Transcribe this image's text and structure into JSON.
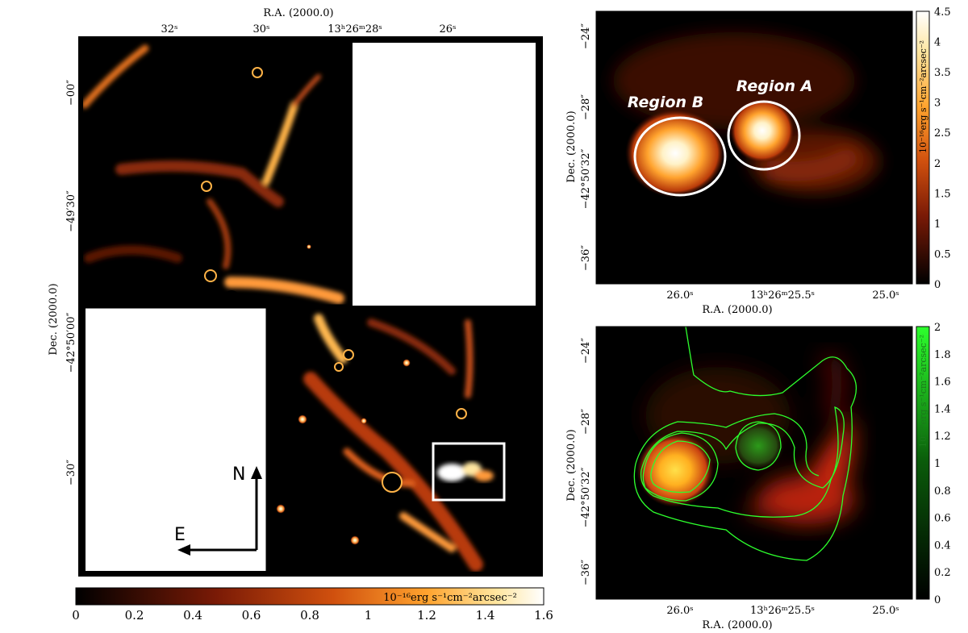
{
  "colors": {
    "heat_low": "#000000",
    "heat_mid": "#b83a0a",
    "heat_high": "#ffd27a",
    "heat_top": "#ffffff",
    "region_outline": "#ffffff",
    "contour": "#2dff2d",
    "green_channel": "#00ff00",
    "red_channel": "#ff2a0a"
  },
  "left_panel": {
    "ra_axis_title": "R.A. (2000.0)",
    "dec_axis_title": "Dec. (2000.0)",
    "ra_ticks": [
      "32ˢ",
      "30ˢ",
      "13ʰ26ᵐ28ˢ",
      "26ˢ"
    ],
    "dec_ticks": [
      "−00″",
      "−49′30″",
      "−42°50′00″",
      "−30″"
    ],
    "compass": {
      "north": "N",
      "east": "E"
    },
    "colorbar": {
      "unit_label": "10⁻¹⁶erg s⁻¹cm⁻²arcsec⁻²",
      "ticks": [
        "0",
        "0.2",
        "0.4",
        "0.6",
        "0.8",
        "1",
        "1.2",
        "1.4",
        "1.6"
      ]
    }
  },
  "top_right_panel": {
    "ra_axis_title": "R.A. (2000.0)",
    "dec_axis_title": "Dec. (2000.0)",
    "ra_ticks": [
      "26.0ˢ",
      "13ʰ26ᵐ25.5ˢ",
      "25.0ˢ"
    ],
    "dec_ticks": [
      "−24″",
      "−28″",
      "−42°50′32″",
      "−36″"
    ],
    "regions": [
      "Region B",
      "Region A"
    ],
    "colorbar": {
      "unit_label": "10⁻¹⁶erg s⁻¹cm⁻²arcsec⁻²",
      "ticks": [
        "0",
        "0.5",
        "1",
        "1.5",
        "2",
        "2.5",
        "3",
        "3.5",
        "4",
        "4.5"
      ]
    }
  },
  "bottom_right_panel": {
    "ra_axis_title": "R.A. (2000.0)",
    "dec_axis_title": "Dec. (2000.0)",
    "ra_ticks": [
      "26.0ˢ",
      "13ʰ26ᵐ25.5ˢ",
      "25.0ˢ"
    ],
    "dec_ticks": [
      "−24″",
      "−28″",
      "−42°50′32″",
      "−36″"
    ],
    "colorbar": {
      "unit_label": "10⁻¹⁶erg s⁻¹cm⁻²arcsec⁻²",
      "ticks": [
        "0",
        "0.2",
        "0.4",
        "0.6",
        "0.8",
        "1",
        "1.2",
        "1.4",
        "1.6",
        "1.8",
        "2"
      ]
    }
  }
}
